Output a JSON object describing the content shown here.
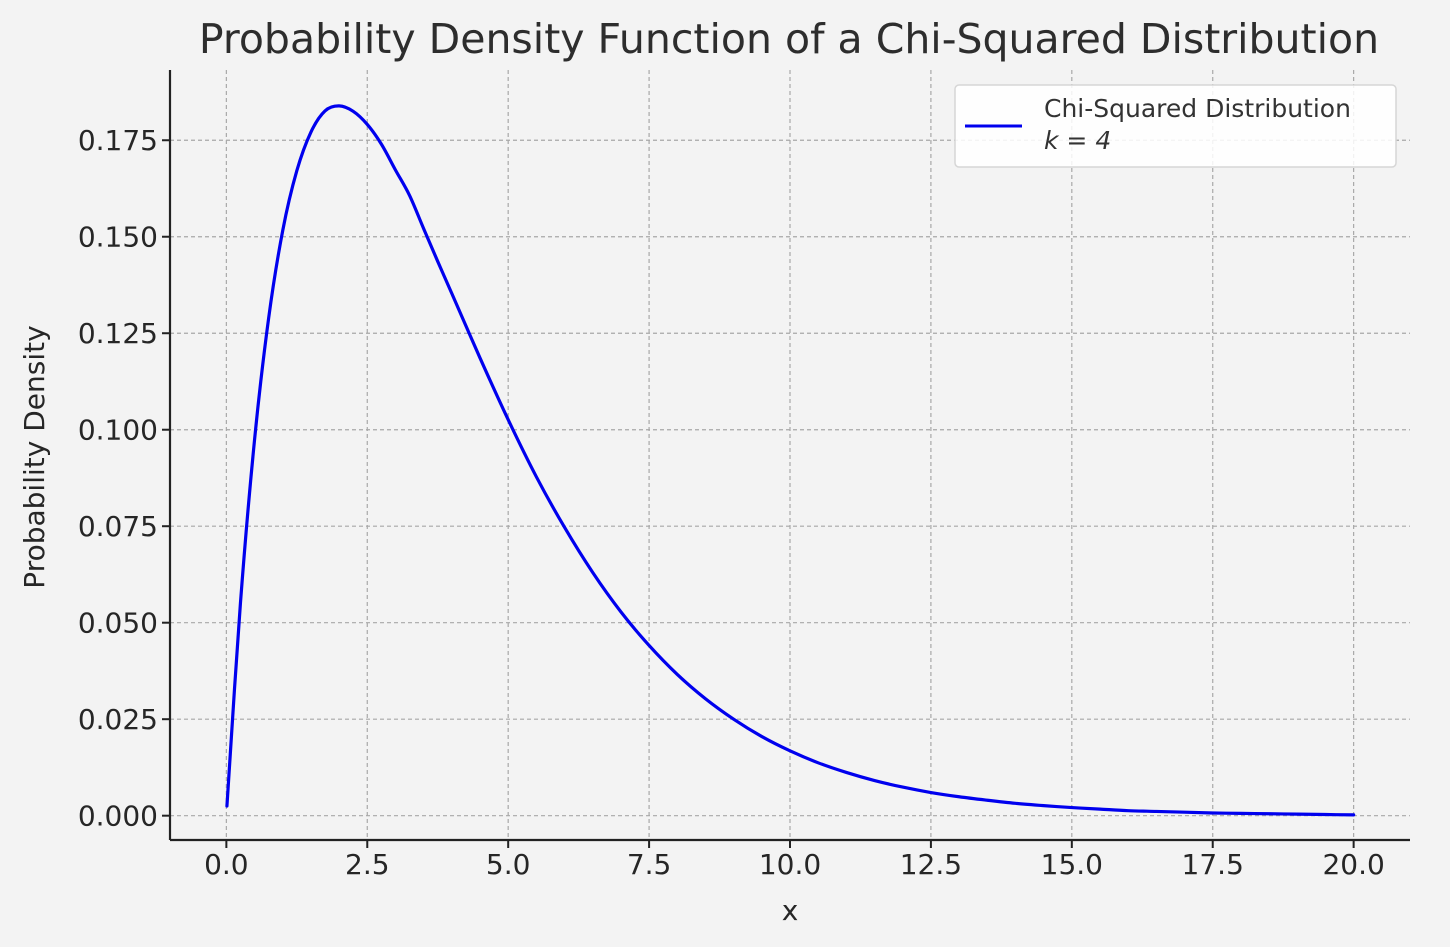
{
  "chart_data": {
    "type": "line",
    "title": "Probability Density Function of a Chi-Squared Distribution",
    "xlabel": "x",
    "ylabel": "Probability Density",
    "xlim": [
      -1,
      21
    ],
    "ylim": [
      -0.0063,
      0.1932
    ],
    "xticks": [
      0,
      2.5,
      5,
      7.5,
      10,
      12.5,
      15,
      17.5,
      20
    ],
    "xtick_labels": [
      "0.0",
      "2.5",
      "5.0",
      "7.5",
      "10.0",
      "12.5",
      "15.0",
      "17.5",
      "20.0"
    ],
    "yticks": [
      0,
      0.025,
      0.05,
      0.075,
      0.1,
      0.125,
      0.15,
      0.175
    ],
    "ytick_labels": [
      "0.000",
      "0.025",
      "0.050",
      "0.075",
      "0.100",
      "0.125",
      "0.150",
      "0.175"
    ],
    "grid": true,
    "legend_position": "top-right",
    "series": [
      {
        "name": "Chi-Squared Distribution",
        "name_line2": "k = 4",
        "color": "#0000ee",
        "x": [
          0.01,
          0.25,
          0.5,
          0.75,
          1,
          1.25,
          1.5,
          1.75,
          2,
          2.25,
          2.5,
          2.75,
          3,
          3.25,
          3.5,
          3.75,
          4,
          4.5,
          5,
          5.5,
          6,
          6.5,
          7,
          7.5,
          8,
          8.5,
          9,
          9.5,
          10,
          10.5,
          11,
          11.5,
          12,
          12.5,
          13,
          13.5,
          14,
          14.5,
          15,
          15.5,
          16,
          16.5,
          17,
          17.5,
          18,
          18.5,
          19,
          19.5,
          20
        ],
        "y": [
          0.0025,
          0.0551,
          0.0974,
          0.1289,
          0.1516,
          0.1671,
          0.1771,
          0.1826,
          0.1839,
          0.1825,
          0.1791,
          0.174,
          0.1673,
          0.1607,
          0.1521,
          0.1436,
          0.1353,
          0.1186,
          0.1026,
          0.0878,
          0.0747,
          0.063,
          0.0528,
          0.0441,
          0.0366,
          0.0303,
          0.025,
          0.0205,
          0.0168,
          0.0137,
          0.0112,
          0.0091,
          0.0074,
          0.006,
          0.0049,
          0.004,
          0.0032,
          0.0026,
          0.0021,
          0.0017,
          0.0013,
          0.0011,
          0.0009,
          0.0007,
          0.0006,
          0.0005,
          0.0004,
          0.0003,
          0.0002
        ]
      }
    ]
  }
}
